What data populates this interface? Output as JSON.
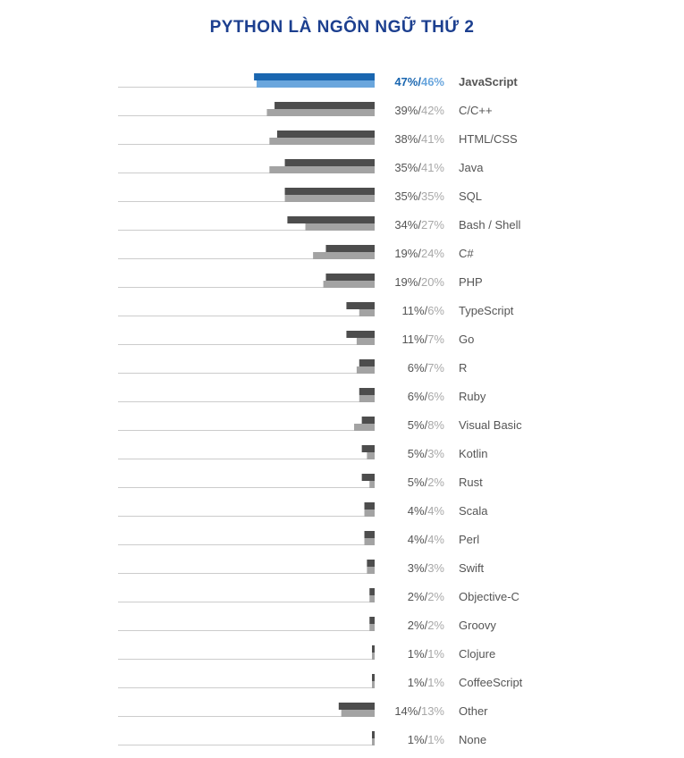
{
  "title": "PYTHON LÀ NGÔN NGỮ THỨ 2",
  "colors": {
    "title": "#1c3f8f",
    "bar_current": "#4d4d4d",
    "bar_previous": "#a3a3a3",
    "highlight_current": "#1a66b0",
    "highlight_previous": "#6aa6dd",
    "highlight_text": "#1a66b0",
    "highlight_text_light": "#6aa6dd",
    "pct_current_text": "#555555",
    "pct_previous_text": "#a8a8a8",
    "baseline": "#cccccc"
  },
  "chart_data": {
    "type": "bar",
    "orientation": "horizontal",
    "direction": "right-to-left",
    "title": "PYTHON LÀ NGÔN NGỮ THỨ 2",
    "highlight_category": "JavaScript",
    "categories": [
      "JavaScript",
      "C/C++",
      "HTML/CSS",
      "Java",
      "SQL",
      "Bash / Shell",
      "C#",
      "PHP",
      "TypeScript",
      "Go",
      "R",
      "Ruby",
      "Visual Basic",
      "Kotlin",
      "Rust",
      "Scala",
      "Perl",
      "Swift",
      "Objective-C",
      "Groovy",
      "Clojure",
      "CoffeeScript",
      "Other",
      "None"
    ],
    "series": [
      {
        "values": [
          47,
          39,
          38,
          35,
          35,
          34,
          19,
          19,
          11,
          11,
          6,
          6,
          5,
          5,
          5,
          4,
          4,
          3,
          2,
          2,
          1,
          1,
          14,
          1
        ]
      },
      {
        "values": [
          46,
          42,
          41,
          41,
          35,
          27,
          24,
          20,
          6,
          7,
          7,
          6,
          8,
          3,
          2,
          4,
          4,
          3,
          2,
          2,
          1,
          1,
          13,
          1
        ]
      }
    ],
    "labels": [
      "47%/46%",
      "39%/42%",
      "38%/41%",
      "35%/41%",
      "35%/35%",
      "34%/27%",
      "19%/24%",
      "19%/20%",
      "11%/6%",
      "11%/7%",
      "6%/7%",
      "6%/6%",
      "5%/8%",
      "5%/3%",
      "5%/2%",
      "4%/4%",
      "4%/4%",
      "3%/3%",
      "2%/2%",
      "2%/2%",
      "1%/1%",
      "1%/1%",
      "14%/13%",
      "1%/1%"
    ],
    "value_unit": "%"
  }
}
